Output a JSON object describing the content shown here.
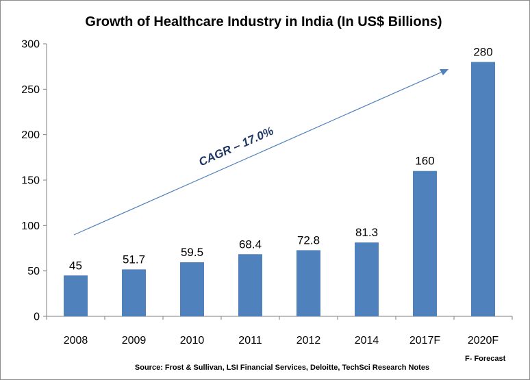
{
  "chart_data": {
    "type": "bar",
    "title": "Growth of Healthcare Industry in India (In US$ Billions)",
    "categories": [
      "2008",
      "2009",
      "2010",
      "2011",
      "2012",
      "2014",
      "2017F",
      "2020F"
    ],
    "values": [
      45,
      51.7,
      59.5,
      68.4,
      72.8,
      81.3,
      160,
      280
    ],
    "data_labels": [
      "45",
      "51.7",
      "59.5",
      "68.4",
      "72.8",
      "81.3",
      "160",
      "280"
    ],
    "ylim": [
      0,
      300
    ],
    "y_ticks": [
      "0",
      "50",
      "100",
      "150",
      "200",
      "250",
      "300"
    ],
    "grid": false,
    "legend": "none",
    "annotations": {
      "cagr": "CAGR – 17.0%",
      "forecast_note": "F- Forecast",
      "source": "Source: Frost & Sullivan, LSI Financial Services, Deloitte, TechSci Research Notes"
    },
    "colors": {
      "bar": "#4f81bd",
      "arrow": "#4f81bd",
      "cagr_text": "#1f3864"
    }
  }
}
